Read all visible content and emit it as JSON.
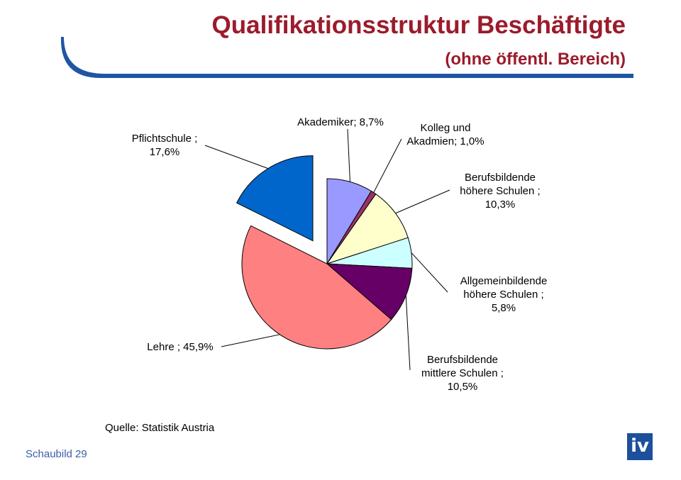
{
  "header": {
    "title": "Qualifikationsstruktur Beschäftigte",
    "subtitle": "(ohne öffentl. Bereich)"
  },
  "chart_data": {
    "type": "pie",
    "title": "",
    "start_angle_deg": 0,
    "slices": [
      {
        "name": "Akademiker",
        "value": 8.7,
        "color": "#9999ff",
        "label_lines": [
          "Akademiker; 8,7%"
        ],
        "explode": false
      },
      {
        "name": "Kolleg und Akadmien",
        "value": 1.0,
        "color": "#993366",
        "label_lines": [
          "Kolleg und",
          "Akadmien; 1,0%"
        ],
        "explode": false
      },
      {
        "name": "Berufsbildende höhere Schulen",
        "value": 10.3,
        "color": "#ffffcc",
        "label_lines": [
          "Berufsbildende",
          "höhere Schulen ;",
          "10,3%"
        ],
        "explode": false
      },
      {
        "name": "Allgemeinbildende höhere Schulen",
        "value": 5.8,
        "color": "#ccffff",
        "label_lines": [
          "Allgemeinbildende",
          "höhere Schulen ;",
          "5,8%"
        ],
        "explode": false
      },
      {
        "name": "Berufsbildende mittlere Schulen",
        "value": 10.5,
        "color": "#660066",
        "label_lines": [
          "Berufsbildende",
          "mittlere Schulen ;",
          "10,5%"
        ],
        "explode": false
      },
      {
        "name": "Lehre",
        "value": 45.9,
        "color": "#ff8080",
        "label_lines": [
          "Lehre ; 45,9%"
        ],
        "explode": false
      },
      {
        "name": "Pflichtschule",
        "value": 17.6,
        "color": "#0066cc",
        "label_lines": [
          "Pflichtschule ;",
          "17,6%"
        ],
        "explode": true
      }
    ]
  },
  "source": "Quelle: Statistik Austria",
  "footer": "Schaubild 29",
  "logo_text": "iv"
}
